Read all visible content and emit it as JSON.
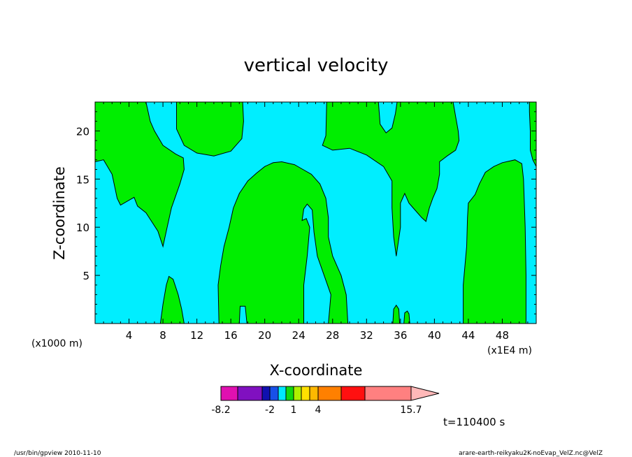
{
  "footer": {
    "left": "/usr/bin/gpview   2010-11-10",
    "right": "arare-earth-reikyaku2K-noEvap_VelZ.nc@VelZ"
  },
  "chart_data": {
    "type": "heatmap",
    "title": "vertical velocity",
    "xlabel": "X-coordinate",
    "ylabel": "Z-coordinate",
    "x_units_label": "(x1000 m)",
    "y_units_label": "(x1E4 m)",
    "xlim": [
      0,
      52
    ],
    "ylim": [
      0,
      23
    ],
    "x_ticks": [
      4,
      8,
      12,
      16,
      20,
      24,
      28,
      32,
      36,
      40,
      44,
      48
    ],
    "y_ticks": [
      5,
      10,
      15,
      20
    ],
    "grid": false,
    "time_label": "t=110400 s",
    "colorbar": {
      "colors": [
        "#e010b0",
        "#8010c0",
        "#1010b0",
        "#1850e8",
        "#00e8ff",
        "#10d810",
        "#b0f000",
        "#ffe000",
        "#ffb800",
        "#ff8000",
        "#ff1010",
        "#ff8080",
        "#ffb8b8"
      ],
      "labels": [
        "-8.2",
        "-2",
        "1",
        "4",
        "15.7"
      ]
    },
    "background_color": "#00eeff",
    "region_color": "#00ee00",
    "regions": [
      {
        "name": "region-top-left",
        "points": [
          [
            0,
            23
          ],
          [
            0,
            16.8
          ],
          [
            1,
            17
          ],
          [
            2,
            15.5
          ],
          [
            2.6,
            13
          ],
          [
            3,
            12.3
          ],
          [
            4,
            12.8
          ],
          [
            4.6,
            13.1
          ],
          [
            5,
            12.2
          ],
          [
            6,
            11.5
          ],
          [
            7.4,
            9.6
          ],
          [
            8,
            8
          ],
          [
            8.5,
            10
          ],
          [
            9,
            12
          ],
          [
            10,
            14.5
          ],
          [
            10.5,
            16
          ],
          [
            10.4,
            17.2
          ],
          [
            9.5,
            17.6
          ],
          [
            8,
            18.5
          ],
          [
            7,
            20
          ],
          [
            6.5,
            21
          ],
          [
            6,
            23
          ]
        ]
      },
      {
        "name": "region-top-center-left",
        "points": [
          [
            9.6,
            23
          ],
          [
            9.6,
            20.2
          ],
          [
            10.5,
            18.5
          ],
          [
            12,
            17.7
          ],
          [
            14,
            17.4
          ],
          [
            16,
            17.9
          ],
          [
            17.3,
            19.2
          ],
          [
            17.5,
            21
          ],
          [
            17.4,
            23
          ]
        ]
      },
      {
        "name": "region-top-right",
        "points": [
          [
            27.3,
            23
          ],
          [
            27.2,
            19.5
          ],
          [
            26.8,
            18.5
          ],
          [
            28,
            18
          ],
          [
            30,
            18.2
          ],
          [
            32,
            17.5
          ],
          [
            34,
            16.3
          ],
          [
            35,
            14.8
          ],
          [
            35,
            12
          ],
          [
            35.2,
            9
          ],
          [
            35.5,
            7
          ],
          [
            36,
            10
          ],
          [
            36,
            12.5
          ],
          [
            36.5,
            13.5
          ],
          [
            37,
            12.5
          ],
          [
            38,
            11.5
          ],
          [
            38.5,
            11
          ],
          [
            39,
            10.6
          ],
          [
            39.4,
            12
          ],
          [
            39.8,
            13
          ],
          [
            40.3,
            14
          ],
          [
            40.6,
            15.5
          ],
          [
            40.6,
            16.8
          ],
          [
            41.5,
            17.4
          ],
          [
            42.5,
            18
          ],
          [
            42.9,
            19
          ],
          [
            42.8,
            20
          ],
          [
            42.5,
            21.5
          ],
          [
            42.2,
            23
          ],
          [
            35.6,
            23
          ],
          [
            35.4,
            21.8
          ],
          [
            35,
            20.3
          ],
          [
            34.3,
            19.8
          ],
          [
            33.6,
            20.7
          ],
          [
            33.4,
            23
          ]
        ]
      },
      {
        "name": "region-right-edge",
        "points": [
          [
            51.2,
            23
          ],
          [
            51.2,
            22
          ],
          [
            51.3,
            20
          ],
          [
            51.3,
            18
          ],
          [
            51.6,
            17
          ],
          [
            52,
            16.3
          ],
          [
            52,
            23
          ]
        ]
      },
      {
        "name": "region-center-plume",
        "points": [
          [
            14.6,
            0
          ],
          [
            14.5,
            4
          ],
          [
            14.8,
            6
          ],
          [
            15.2,
            8
          ],
          [
            15.8,
            10
          ],
          [
            16.3,
            12
          ],
          [
            17,
            13.5
          ],
          [
            18,
            14.8
          ],
          [
            19,
            15.6
          ],
          [
            20,
            16.3
          ],
          [
            21,
            16.7
          ],
          [
            22,
            16.8
          ],
          [
            23.5,
            16.5
          ],
          [
            24.5,
            16
          ],
          [
            25.5,
            15.5
          ],
          [
            26.5,
            14.5
          ],
          [
            27.2,
            13
          ],
          [
            27.5,
            11
          ],
          [
            27.5,
            9
          ],
          [
            28,
            7
          ],
          [
            29,
            5
          ],
          [
            29.6,
            3
          ],
          [
            29.8,
            0
          ],
          [
            27.5,
            0
          ],
          [
            27.8,
            3
          ],
          [
            27,
            5
          ],
          [
            26.2,
            7
          ],
          [
            25.8,
            9.5
          ],
          [
            25.6,
            11.8
          ],
          [
            25,
            12.4
          ],
          [
            24.6,
            11.9
          ],
          [
            24.4,
            10.7
          ],
          [
            24.9,
            10.9
          ],
          [
            25.3,
            10
          ],
          [
            25,
            7
          ],
          [
            24.6,
            4
          ],
          [
            24.6,
            0
          ],
          [
            17.9,
            0
          ],
          [
            17.7,
            1.8
          ],
          [
            17.1,
            1.8
          ],
          [
            17,
            0
          ]
        ]
      },
      {
        "name": "region-bottom-left",
        "points": [
          [
            7.7,
            0
          ],
          [
            8,
            2
          ],
          [
            8.4,
            4
          ],
          [
            8.7,
            4.9
          ],
          [
            9.2,
            4.6
          ],
          [
            9.8,
            3
          ],
          [
            10.2,
            1.5
          ],
          [
            10.5,
            0
          ]
        ]
      },
      {
        "name": "region-right-column",
        "points": [
          [
            43.4,
            0
          ],
          [
            43.4,
            4
          ],
          [
            43.8,
            8
          ],
          [
            43.9,
            11
          ],
          [
            44,
            12.5
          ],
          [
            44.8,
            13.4
          ],
          [
            45.3,
            14.5
          ],
          [
            46,
            15.7
          ],
          [
            47,
            16.3
          ],
          [
            48,
            16.7
          ],
          [
            49.5,
            17
          ],
          [
            50.3,
            16.6
          ],
          [
            50.5,
            15
          ],
          [
            50.7,
            10
          ],
          [
            50.8,
            5
          ],
          [
            50.8,
            0
          ]
        ]
      },
      {
        "name": "region-bottom-small-1",
        "points": [
          [
            35.1,
            0
          ],
          [
            35.2,
            1.5
          ],
          [
            35.5,
            1.9
          ],
          [
            35.8,
            1.5
          ],
          [
            35.9,
            0
          ]
        ]
      },
      {
        "name": "region-bottom-small-2",
        "points": [
          [
            36.4,
            0
          ],
          [
            36.5,
            1.1
          ],
          [
            36.8,
            1.3
          ],
          [
            37,
            1
          ],
          [
            37.1,
            0
          ]
        ]
      }
    ]
  }
}
